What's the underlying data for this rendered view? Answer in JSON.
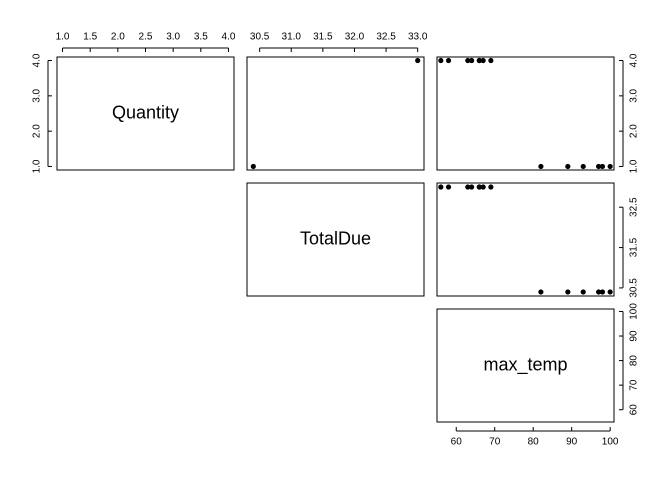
{
  "chart_data": {
    "type": "scatter",
    "layout": "upper-triangle-pairs",
    "variables": [
      {
        "name": "Quantity",
        "range": [
          0.9,
          4.1
        ],
        "ticks": [
          1.0,
          1.5,
          2.0,
          2.5,
          3.0,
          3.5,
          4.0
        ],
        "tick_labels": [
          "1.0",
          "1.5",
          "2.0",
          "2.5",
          "3.0",
          "3.5",
          "4.0"
        ],
        "diag_ticks": [
          1.0,
          2.0,
          3.0,
          4.0
        ],
        "diag_tick_labels": [
          "1.0",
          "2.0",
          "3.0",
          "4.0"
        ]
      },
      {
        "name": "TotalDue",
        "range": [
          30.3,
          33.1
        ],
        "ticks": [
          30.5,
          31.0,
          31.5,
          32.0,
          32.5,
          33.0
        ],
        "tick_labels": [
          "30.5",
          "31.0",
          "31.5",
          "32.0",
          "32.5",
          "33.0"
        ],
        "diag_ticks": [
          30.5,
          31.5,
          32.5
        ],
        "diag_tick_labels": [
          "30.5",
          "31.5",
          "32.5"
        ]
      },
      {
        "name": "max_temp",
        "range": [
          55,
          101
        ],
        "ticks": [
          60,
          70,
          80,
          90,
          100
        ],
        "tick_labels": [
          "60",
          "70",
          "80",
          "90",
          "100"
        ],
        "diag_ticks": [
          60,
          70,
          80,
          90,
          100
        ],
        "diag_tick_labels": [
          "60",
          "70",
          "80",
          "90",
          "100"
        ]
      }
    ],
    "observations": {
      "Quantity": [
        4,
        4,
        4,
        4,
        4,
        4,
        4,
        4,
        1,
        1,
        1,
        1,
        1,
        1
      ],
      "TotalDue": [
        33.0,
        33.0,
        33.0,
        33.0,
        33.0,
        33.0,
        33.0,
        33.0,
        30.4,
        30.4,
        30.4,
        30.4,
        30.4,
        30.4
      ],
      "max_temp": [
        56,
        58,
        63,
        64,
        66,
        67,
        69,
        66,
        82,
        89,
        93,
        97,
        98,
        100
      ]
    },
    "panel_points": {
      "0_1": [
        [
          30.4,
          1.0
        ],
        [
          33.0,
          4.0
        ]
      ]
    }
  }
}
